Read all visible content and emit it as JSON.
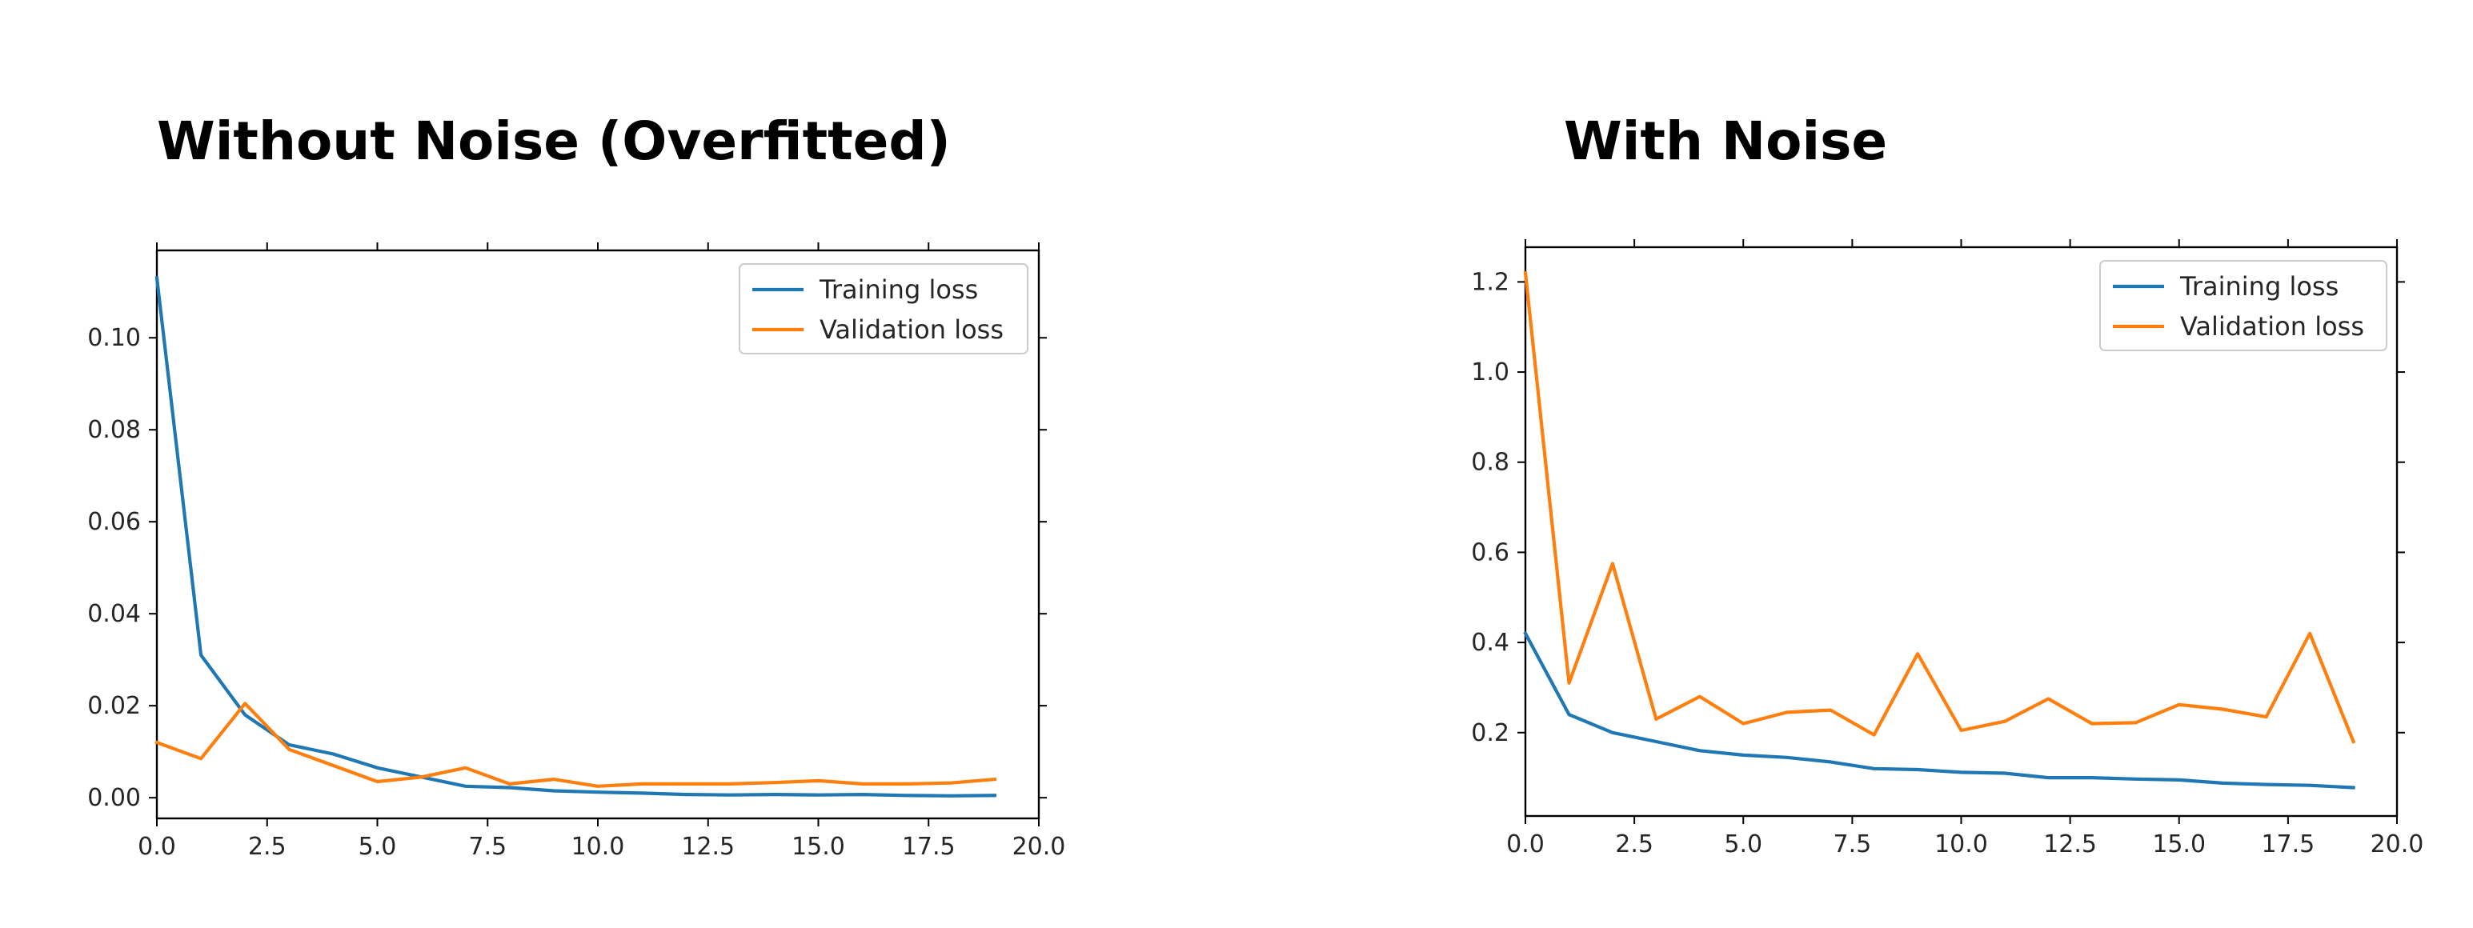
{
  "panels": [
    {
      "title": "Without Noise (Overfitted)"
    },
    {
      "title": "With Noise"
    }
  ],
  "chart_data": [
    {
      "type": "line",
      "title": "",
      "xlabel": "",
      "ylabel": "",
      "xlim": [
        0,
        20
      ],
      "ylim": [
        -0.0045,
        0.119
      ],
      "xticks": [
        "0.0",
        "2.5",
        "5.0",
        "7.5",
        "10.0",
        "12.5",
        "15.0",
        "17.5",
        "20.0"
      ],
      "yticks": [
        "0.00",
        "0.02",
        "0.04",
        "0.06",
        "0.08",
        "0.10"
      ],
      "grid": false,
      "legend": "top-right",
      "x": [
        0,
        1,
        2,
        3,
        4,
        5,
        6,
        7,
        8,
        9,
        10,
        11,
        12,
        13,
        14,
        15,
        16,
        17,
        18,
        19
      ],
      "series": [
        {
          "name": "Training loss",
          "color": "#1f77b4",
          "values": [
            0.113,
            0.031,
            0.018,
            0.0115,
            0.0095,
            0.0065,
            0.0045,
            0.0025,
            0.0022,
            0.0015,
            0.0012,
            0.001,
            0.0007,
            0.0006,
            0.0007,
            0.0006,
            0.0007,
            0.0005,
            0.0004,
            0.0005
          ]
        },
        {
          "name": "Validation loss",
          "color": "#ff7f0e",
          "values": [
            0.012,
            0.0085,
            0.0205,
            0.0105,
            0.007,
            0.0035,
            0.0045,
            0.0065,
            0.003,
            0.004,
            0.0025,
            0.003,
            0.003,
            0.003,
            0.0033,
            0.0037,
            0.003,
            0.003,
            0.0032,
            0.004
          ]
        }
      ]
    },
    {
      "type": "line",
      "title": "",
      "xlabel": "",
      "ylabel": "",
      "xlim": [
        0,
        20
      ],
      "ylim": [
        0.015,
        1.277
      ],
      "xticks": [
        "0.0",
        "2.5",
        "5.0",
        "7.5",
        "10.0",
        "12.5",
        "15.0",
        "17.5",
        "20.0"
      ],
      "yticks": [
        "0.2",
        "0.4",
        "0.6",
        "0.8",
        "1.0",
        "1.2"
      ],
      "grid": false,
      "legend": "top-right",
      "x": [
        0,
        1,
        2,
        3,
        4,
        5,
        6,
        7,
        8,
        9,
        10,
        11,
        12,
        13,
        14,
        15,
        16,
        17,
        18,
        19
      ],
      "series": [
        {
          "name": "Training loss",
          "color": "#1f77b4",
          "values": [
            0.42,
            0.24,
            0.2,
            0.18,
            0.16,
            0.15,
            0.145,
            0.135,
            0.12,
            0.118,
            0.112,
            0.11,
            0.1,
            0.1,
            0.097,
            0.095,
            0.088,
            0.085,
            0.083,
            0.078
          ]
        },
        {
          "name": "Validation loss",
          "color": "#ff7f0e",
          "values": [
            1.22,
            0.31,
            0.575,
            0.23,
            0.28,
            0.22,
            0.245,
            0.25,
            0.195,
            0.375,
            0.205,
            0.225,
            0.275,
            0.22,
            0.222,
            0.262,
            0.252,
            0.235,
            0.42,
            0.18
          ]
        }
      ]
    }
  ]
}
